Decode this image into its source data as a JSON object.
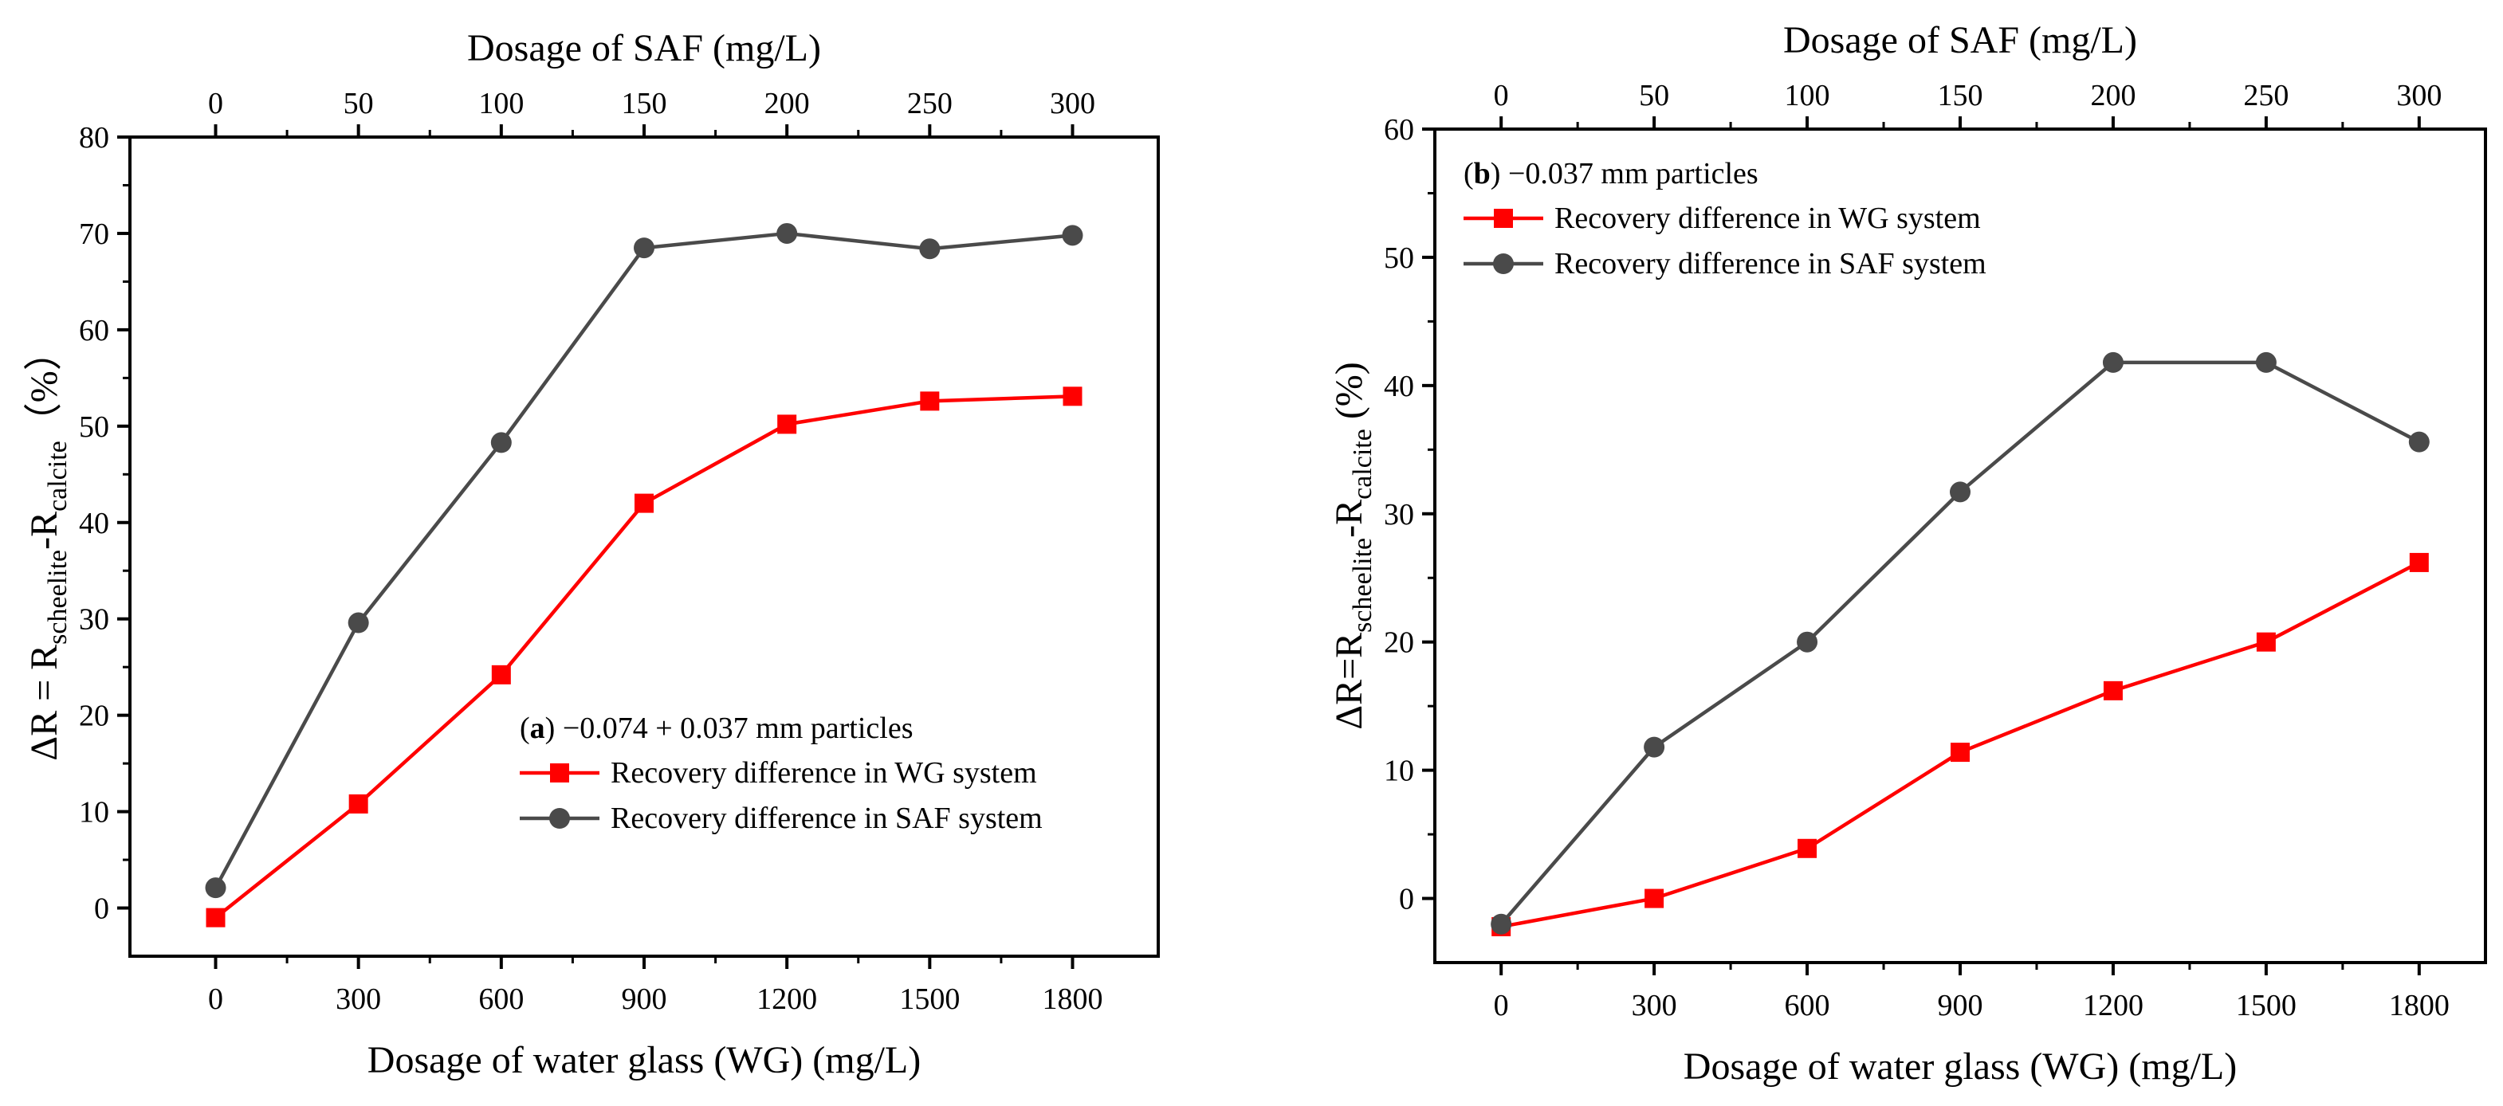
{
  "chart_data": [
    {
      "type": "line",
      "panel": "a",
      "annotation": {
        "letter": "a",
        "rest": " −0.074 + 0.037 mm particles"
      },
      "xlabel": "Dosage of water glass (WG) (mg/L)",
      "x2label": "Dosage of SAF (mg/L)",
      "ylabel": {
        "prefix": "ΔR = R",
        "sub1": "scheelite",
        "mid": "-R",
        "sub2": "calcite",
        "suffix": "（%）"
      },
      "x": [
        0,
        300,
        600,
        900,
        1200,
        1500,
        1800
      ],
      "x_tick_labels": [
        "0",
        "300",
        "600",
        "900",
        "1200",
        "1500",
        "1800"
      ],
      "x2_tick_labels": [
        "0",
        "50",
        "100",
        "150",
        "200",
        "250",
        "300"
      ],
      "y_tick_labels": [
        "0",
        "10",
        "20",
        "30",
        "40",
        "50",
        "60",
        "70",
        "80"
      ],
      "xlim": [
        -180,
        1980
      ],
      "ylim": [
        -5,
        80
      ],
      "y_ticks": [
        0,
        10,
        20,
        30,
        40,
        50,
        60,
        70,
        80
      ],
      "series": [
        {
          "name": "Recovery difference in WG system",
          "color": "#ff0000",
          "marker": "square",
          "values": [
            -1.0,
            10.8,
            24.2,
            42.0,
            50.2,
            52.6,
            53.1
          ]
        },
        {
          "name": "Recovery difference in SAF system",
          "color": "#4a4a4a",
          "marker": "circle",
          "values": [
            2.1,
            29.6,
            48.3,
            68.5,
            70.0,
            68.4,
            69.8
          ]
        }
      ]
    },
    {
      "type": "line",
      "panel": "b",
      "annotation": {
        "letter": "b",
        "rest": " −0.037 mm particles"
      },
      "xlabel": "Dosage of water glass (WG) (mg/L)",
      "x2label": "Dosage of SAF (mg/L)",
      "ylabel": {
        "prefix": "ΔR=R",
        "sub1": "scheelite",
        "mid": "-R",
        "sub2": "calcite",
        "suffix": " (%)"
      },
      "x": [
        0,
        300,
        600,
        900,
        1200,
        1500,
        1800
      ],
      "x_tick_labels": [
        "0",
        "300",
        "600",
        "900",
        "1200",
        "1500",
        "1800"
      ],
      "x2_tick_labels": [
        "0",
        "50",
        "100",
        "150",
        "200",
        "250",
        "300"
      ],
      "y_tick_labels": [
        "0",
        "10",
        "20",
        "30",
        "40",
        "50",
        "60"
      ],
      "xlim": [
        -130,
        1930
      ],
      "ylim": [
        -5,
        60
      ],
      "y_ticks": [
        0,
        10,
        20,
        30,
        40,
        50,
        60
      ],
      "series": [
        {
          "name": "Recovery difference in WG system",
          "color": "#ff0000",
          "marker": "square",
          "values": [
            -2.2,
            0.0,
            3.9,
            11.4,
            16.2,
            20.0,
            26.2
          ]
        },
        {
          "name": "Recovery difference in SAF system",
          "color": "#4a4a4a",
          "marker": "circle",
          "values": [
            -2.0,
            11.8,
            20.0,
            31.7,
            41.8,
            41.8,
            35.6
          ]
        }
      ]
    }
  ]
}
